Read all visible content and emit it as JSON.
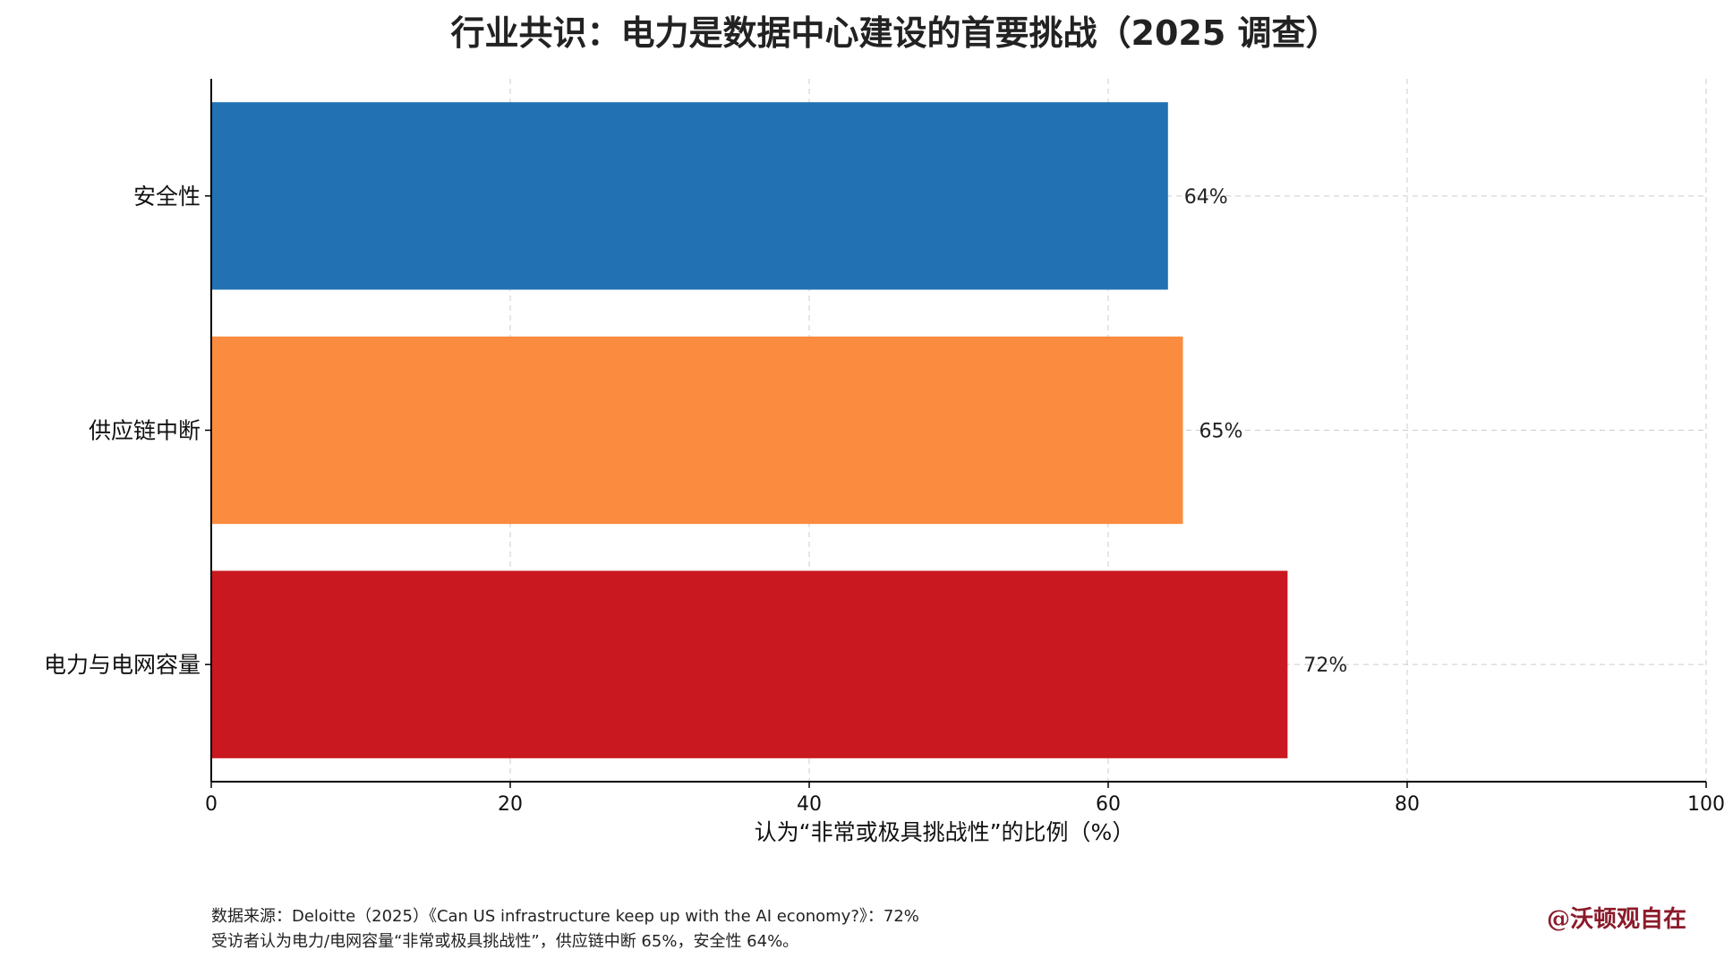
{
  "chart_data": {
    "type": "bar",
    "orientation": "horizontal",
    "title": "行业共识：电力是数据中心建设的首要挑战（2025 调查）",
    "xlabel": "认为“非常或极具挑战性”的比例（%）",
    "ylabel": "",
    "xlim": [
      0,
      100
    ],
    "x_ticks": [
      0,
      20,
      40,
      60,
      80,
      100
    ],
    "grid": true,
    "categories": [
      "安全性",
      "供应链中断",
      "电力与电网容量"
    ],
    "values": [
      64,
      65,
      72
    ],
    "data_labels": [
      "64%",
      "65%",
      "72%"
    ],
    "colors": [
      "#2271b3",
      "#fb8b3e",
      "#c9181f"
    ]
  },
  "footnote": {
    "line1": "数据来源：Deloitte（2025）《Can US infrastructure keep up with the AI economy?》：72%",
    "line2": "受访者认为电力/电网容量“非常或极具挑战性”，供应链中断 65%，安全性 64%。"
  },
  "watermark": "@沃顿观自在"
}
